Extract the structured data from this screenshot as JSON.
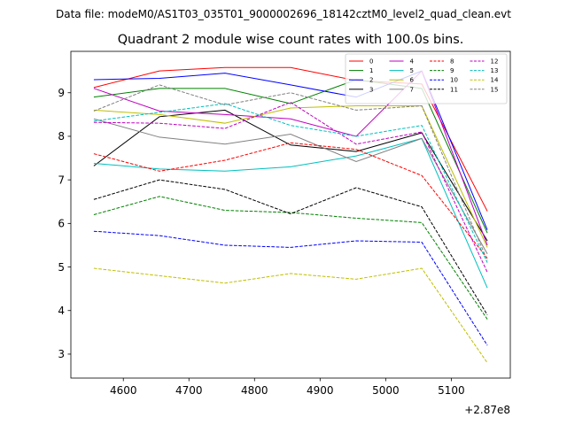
{
  "chart_data": {
    "type": "line",
    "suptitle": "Data file: modeM0/AS1T03_035T01_9000002696_18142cztM0_level2_quad_clean.evt",
    "title": "Quadrant 2 module wise count rates with 100.0s bins.",
    "x_offset_label": "+2.87e8",
    "x": [
      4555,
      4655,
      4755,
      4855,
      4955,
      5055,
      5155
    ],
    "xlim": [
      4520,
      5190
    ],
    "ylim": [
      2.45,
      9.95
    ],
    "x_ticks": [
      4600,
      4700,
      4800,
      4900,
      5000,
      5100
    ],
    "y_ticks": [
      3,
      4,
      5,
      6,
      7,
      8,
      9
    ],
    "legend_position": "top-right",
    "series": [
      {
        "name": "0",
        "color": "#ff0000",
        "dash": "solid",
        "values": [
          9.12,
          9.5,
          9.58,
          9.58,
          9.28,
          9.2,
          6.28
        ]
      },
      {
        "name": "1",
        "color": "#008000",
        "dash": "solid",
        "values": [
          8.9,
          9.1,
          9.1,
          8.75,
          9.3,
          9.1,
          5.78
        ]
      },
      {
        "name": "2",
        "color": "#0000ff",
        "dash": "solid",
        "values": [
          9.3,
          9.33,
          9.45,
          9.18,
          8.9,
          9.5,
          5.85
        ]
      },
      {
        "name": "3",
        "color": "#000000",
        "dash": "solid",
        "values": [
          7.32,
          8.45,
          8.6,
          7.8,
          7.65,
          8.08,
          5.6
        ]
      },
      {
        "name": "4",
        "color": "#bf00bf",
        "dash": "solid",
        "values": [
          9.1,
          8.58,
          8.5,
          8.4,
          8.0,
          9.5,
          5.5
        ]
      },
      {
        "name": "5",
        "color": "#00bfbf",
        "dash": "solid",
        "values": [
          7.38,
          7.25,
          7.2,
          7.3,
          7.55,
          7.95,
          4.52
        ]
      },
      {
        "name": "6",
        "color": "#bfbf00",
        "dash": "solid",
        "values": [
          8.6,
          8.5,
          8.3,
          8.65,
          8.7,
          8.7,
          5.45
        ]
      },
      {
        "name": "7",
        "color": "#808080",
        "dash": "solid",
        "values": [
          8.4,
          7.98,
          7.82,
          8.05,
          7.42,
          7.95,
          5.3
        ]
      },
      {
        "name": "8",
        "color": "#ff0000",
        "dash": "dashed",
        "values": [
          7.6,
          7.2,
          7.45,
          7.85,
          7.7,
          7.1,
          5.2
        ]
      },
      {
        "name": "9",
        "color": "#008000",
        "dash": "dashed",
        "values": [
          6.2,
          6.62,
          6.3,
          6.25,
          6.12,
          6.02,
          3.8
        ]
      },
      {
        "name": "10",
        "color": "#0000ff",
        "dash": "dashed",
        "values": [
          5.82,
          5.72,
          5.5,
          5.45,
          5.6,
          5.57,
          3.2
        ]
      },
      {
        "name": "11",
        "color": "#000000",
        "dash": "dashed",
        "values": [
          6.55,
          7.0,
          6.78,
          6.22,
          6.82,
          6.38,
          3.9
        ]
      },
      {
        "name": "12",
        "color": "#bf00bf",
        "dash": "dashed",
        "values": [
          8.32,
          8.3,
          8.18,
          8.78,
          7.82,
          8.1,
          4.88
        ]
      },
      {
        "name": "13",
        "color": "#00bfbf",
        "dash": "dashed",
        "values": [
          8.35,
          8.55,
          8.75,
          8.25,
          8.0,
          8.25,
          5.1
        ]
      },
      {
        "name": "14",
        "color": "#bfbf00",
        "dash": "dashed",
        "values": [
          4.97,
          4.8,
          4.63,
          4.85,
          4.72,
          4.97,
          2.8
        ]
      },
      {
        "name": "15",
        "color": "#808080",
        "dash": "dashed",
        "values": [
          8.58,
          9.18,
          8.72,
          9.0,
          8.6,
          8.7,
          5.15
        ]
      }
    ]
  }
}
